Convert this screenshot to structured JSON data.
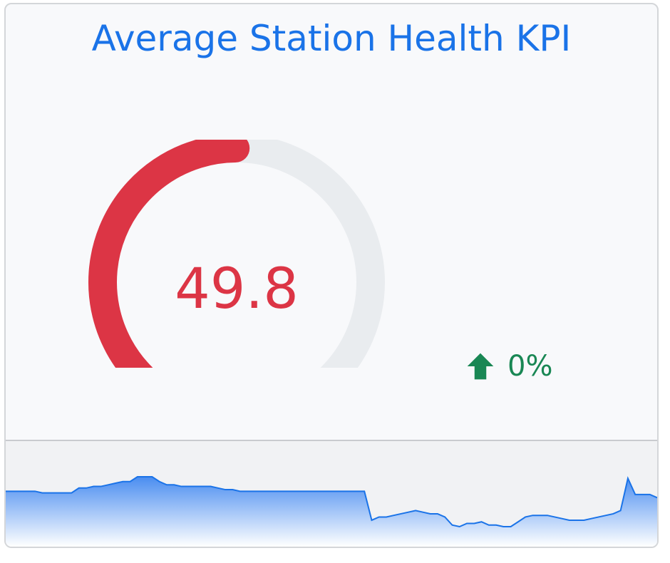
{
  "card": {
    "title": "Average Station Health KPI",
    "value": "49.8",
    "value_fraction": 0.498,
    "change_text": "0%",
    "change_icon": "arrow-up-icon",
    "colors": {
      "title": "#1a73e8",
      "gauge_fill": "#dc3545",
      "gauge_track": "#e9ecef",
      "change": "#198754",
      "spark_line": "#1a73e8"
    }
  },
  "chart_data": {
    "type": "area",
    "y": [
      52,
      52,
      52,
      52,
      52,
      51,
      51,
      51,
      51,
      51,
      54,
      54,
      55,
      55,
      56,
      57,
      58,
      58,
      61,
      61,
      61,
      58,
      56,
      56,
      55,
      55,
      55,
      55,
      55,
      54,
      53,
      53,
      52,
      52,
      52,
      52,
      52,
      52,
      52,
      52,
      52,
      52,
      52,
      52,
      52,
      52,
      52,
      52,
      52,
      52,
      34,
      36,
      36,
      37,
      38,
      39,
      40,
      39,
      38,
      38,
      36,
      31,
      30,
      32,
      32,
      33,
      31,
      31,
      30,
      30,
      33,
      36,
      37,
      37,
      37,
      36,
      35,
      34,
      34,
      34,
      35,
      36,
      37,
      38,
      40,
      60,
      50,
      50,
      50,
      48
    ]
  }
}
